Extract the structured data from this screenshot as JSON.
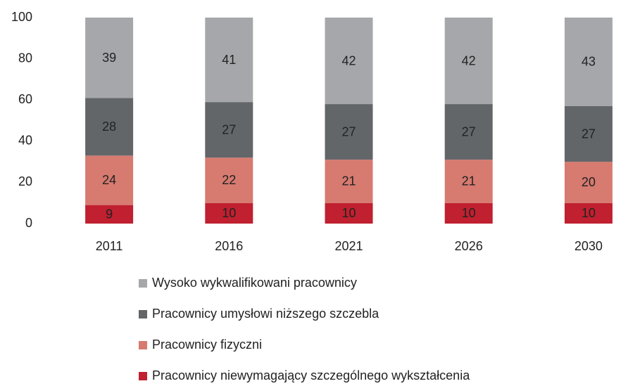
{
  "chart_data": {
    "type": "stacked_bar",
    "categories": [
      "2011",
      "2016",
      "2021",
      "2026",
      "2030"
    ],
    "series": [
      {
        "name": "Wysoko wykwalifikowani pracownicy",
        "color": "#a5a7aa",
        "values": [
          39,
          41,
          42,
          42,
          43
        ]
      },
      {
        "name": "Pracownicy umysłowi niższego szczebla",
        "color": "#636669",
        "values": [
          28,
          27,
          27,
          27,
          27
        ]
      },
      {
        "name": "Pracownicy fizyczni",
        "color": "#d77a70",
        "values": [
          24,
          22,
          21,
          21,
          20
        ]
      },
      {
        "name": "Pracownicy niewymagający szczególnego wykształcenia",
        "color": "#c0202f",
        "values": [
          9,
          10,
          10,
          10,
          10
        ]
      }
    ],
    "ylim": [
      0,
      100
    ],
    "yticks": [
      0,
      20,
      40,
      60,
      80,
      100
    ],
    "grid": false,
    "legend": "bottom"
  }
}
